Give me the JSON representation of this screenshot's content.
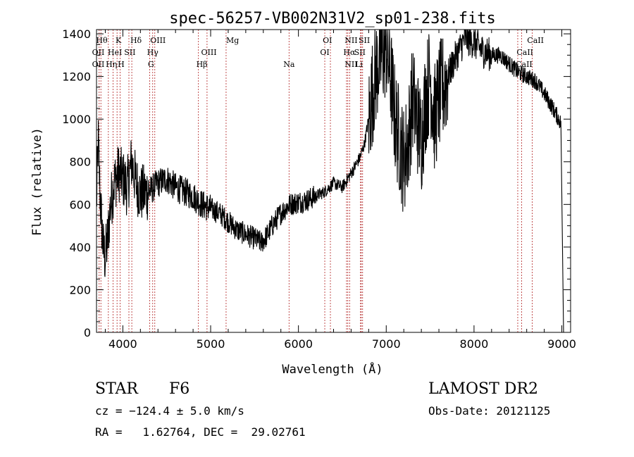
{
  "chart_data": {
    "type": "line",
    "title": "spec-56257-VB002N31V2_sp01-238.fits",
    "xlabel": "Wavelength (Å)",
    "ylabel": "Flux (relative)",
    "xlim": [
      3700,
      9100
    ],
    "ylim": [
      0,
      1420
    ],
    "xticks": [
      4000,
      5000,
      6000,
      7000,
      8000,
      9000
    ],
    "yticks": [
      0,
      200,
      400,
      600,
      800,
      1000,
      1200,
      1400
    ],
    "grid": false,
    "line_color": "#000000",
    "marker_color": "#b22222",
    "series": [
      {
        "x": [
          3700,
          3720,
          3740,
          3760,
          3780,
          3800,
          3830,
          3860,
          3900,
          3950,
          4000,
          4050,
          4100,
          4150,
          4200,
          4300,
          4400,
          4500,
          4600,
          4700,
          4800,
          4900,
          5000,
          5100,
          5200,
          5300,
          5400,
          5500,
          5580,
          5650,
          5700,
          5800,
          5900,
          6000,
          6100,
          6200,
          6300,
          6400,
          6500,
          6560,
          6620,
          6700,
          6750,
          6800,
          6850,
          6900,
          6950,
          7000,
          7050,
          7100,
          7150,
          7200,
          7250,
          7300,
          7350,
          7400,
          7450,
          7500,
          7550,
          7600,
          7700,
          7800,
          7900,
          8000,
          8100,
          8200,
          8300,
          8400,
          8500,
          8600,
          8700,
          8800,
          8900,
          8990,
          9020
        ],
        "y": [
          600,
          900,
          650,
          500,
          380,
          350,
          450,
          600,
          700,
          750,
          720,
          680,
          800,
          700,
          650,
          660,
          700,
          720,
          680,
          660,
          640,
          600,
          580,
          560,
          520,
          480,
          460,
          440,
          420,
          460,
          500,
          560,
          600,
          610,
          620,
          640,
          660,
          700,
          680,
          720,
          760,
          820,
          880,
          1000,
          1150,
          1250,
          1300,
          1350,
          1200,
          1000,
          900,
          800,
          900,
          1100,
          1000,
          900,
          1100,
          1200,
          1000,
          1100,
          1200,
          1300,
          1380,
          1360,
          1320,
          1300,
          1300,
          1260,
          1220,
          1200,
          1180,
          1120,
          1050,
          980,
          0
        ]
      }
    ],
    "lines": [
      {
        "x": 3730,
        "labels": [
          "OII"
        ]
      },
      {
        "x": 3750,
        "labels": [
          "Hθ",
          "Hη"
        ]
      },
      {
        "x": 3835,
        "labels": [
          "Hη"
        ]
      },
      {
        "x": 3889,
        "labels": [
          "HeI"
        ]
      },
      {
        "x": 3934,
        "labels": [
          "K"
        ]
      },
      {
        "x": 3969,
        "labels": [
          "H"
        ]
      },
      {
        "x": 4069,
        "labels": [
          "SII"
        ]
      },
      {
        "x": 4102,
        "labels": [
          "Hδ"
        ]
      },
      {
        "x": 4305,
        "labels": [
          "G"
        ]
      },
      {
        "x": 4340,
        "labels": [
          "Hγ"
        ]
      },
      {
        "x": 4364,
        "labels": [
          "OIII"
        ]
      },
      {
        "x": 4861,
        "labels": [
          "Hβ"
        ]
      },
      {
        "x": 4959,
        "labels": [
          "OIII"
        ]
      },
      {
        "x": 5176,
        "labels": [
          "Mg"
        ]
      },
      {
        "x": 5893,
        "labels": [
          "Na"
        ]
      },
      {
        "x": 6300,
        "labels": [
          "OI"
        ]
      },
      {
        "x": 6364,
        "labels": [
          "OI"
        ]
      },
      {
        "x": 6548,
        "labels": [
          "NII"
        ]
      },
      {
        "x": 6563,
        "labels": [
          "Hα"
        ]
      },
      {
        "x": 6583,
        "labels": [
          "NII"
        ]
      },
      {
        "x": 6707,
        "labels": [
          "Li"
        ]
      },
      {
        "x": 6716,
        "labels": [
          "SII"
        ]
      },
      {
        "x": 6731,
        "labels": [
          "SII"
        ]
      },
      {
        "x": 8498,
        "labels": [
          "CaII"
        ]
      },
      {
        "x": 8542,
        "labels": [
          "CaII"
        ]
      },
      {
        "x": 8662,
        "labels": [
          "CaII"
        ]
      }
    ],
    "line_label_rows": [
      [
        "Hθ",
        "K",
        "Hδ",
        "OIII",
        "Mg",
        "OI",
        "NII",
        "SII",
        "CaII"
      ],
      [
        "OII",
        "HeI",
        "SII",
        "Hγ",
        "OIII",
        "OI",
        "Hα",
        "SII",
        "CaII"
      ],
      [
        "OII",
        "Hη",
        "H",
        "G",
        "Hβ",
        "Na",
        "NII",
        "Li",
        "CaII"
      ]
    ]
  },
  "info": {
    "class": "STAR",
    "subclass": "F6",
    "survey": "LAMOST DR2",
    "cz": "cz = −124.4 ± 5.0 km/s",
    "obs_date": "Obs-Date: 20121125",
    "coords": "RA =   1.62764, DEC =  29.02761"
  }
}
